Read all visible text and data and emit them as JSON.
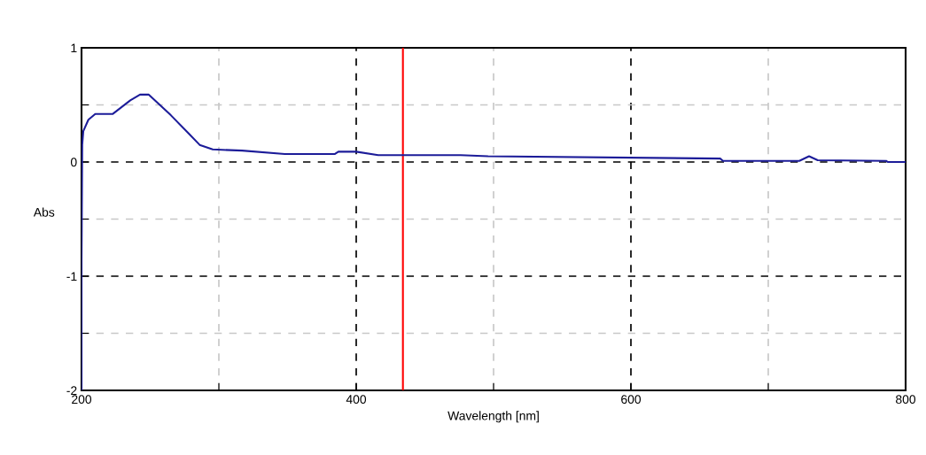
{
  "chart_data": {
    "type": "line",
    "xlabel": "Wavelength [nm]",
    "ylabel": "Abs",
    "series": [
      {
        "color": "#1c1c99",
        "x": [
          200,
          200,
          200.5,
          201.3,
          205,
          210,
          222.6,
          235.5,
          242.6,
          249,
          265,
          278,
          286,
          295.5,
          317,
          348,
          384.5,
          387,
          400,
          416,
          476,
          496,
          665,
          667,
          722.6,
          729.7,
          736,
          785.8,
          787,
          800
        ],
        "values": [
          -2,
          -0.86,
          0.15,
          0.27,
          0.37,
          0.42,
          0.42,
          0.54,
          0.59,
          0.59,
          0.41,
          0.25,
          0.15,
          0.11,
          0.1,
          0.07,
          0.07,
          0.09,
          0.09,
          0.06,
          0.06,
          0.05,
          0.03,
          0.01,
          0.01,
          0.05,
          0.015,
          0.01,
          0,
          0
        ]
      }
    ],
    "xlim": [
      200,
      800
    ],
    "xticks": [
      200,
      {
        "value": 300,
        "label": null
      },
      400,
      {
        "value": 500,
        "label": null
      },
      600,
      {
        "value": 700,
        "label": null
      },
      800
    ],
    "ylim": [
      -2,
      1
    ],
    "yticks": [
      -2,
      {
        "value": -1.5,
        "label": null
      },
      -1,
      {
        "value": -0.5,
        "label": null
      },
      0,
      {
        "value": 0.5,
        "label": null
      },
      1
    ],
    "grid": true,
    "marker": "none",
    "line_style": "solid",
    "ref_lines": [
      {
        "axis": "x",
        "value": 434,
        "color": "#ff0000"
      }
    ]
  }
}
